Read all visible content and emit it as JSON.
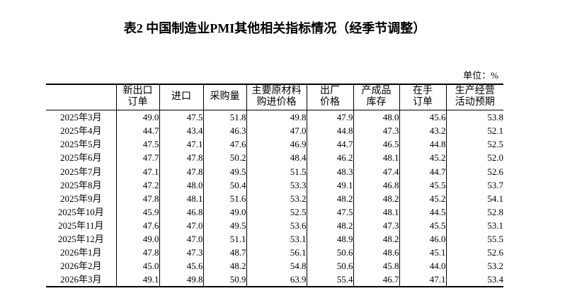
{
  "page": {
    "title": "表2 中国制造业PMI其他相关指标情况（经季节调整）",
    "unit_label": "单位：%"
  },
  "colors": {
    "text": "#000000",
    "border": "#000000",
    "background": "#ffffff"
  },
  "table": {
    "columns": [
      "",
      "新出口\n订单",
      "进口",
      "采购量",
      "主要原材料\n购进价格",
      "出厂\n价格",
      "产成品\n库存",
      "在手\n订单",
      "生产经营\n活动预期"
    ],
    "rows": [
      {
        "label": "2025年3月",
        "values": [
          "49.0",
          "47.5",
          "51.8",
          "49.8",
          "47.9",
          "48.0",
          "45.6",
          "53.8"
        ]
      },
      {
        "label": "2025年4月",
        "values": [
          "44.7",
          "43.4",
          "46.3",
          "47.0",
          "44.8",
          "47.3",
          "43.2",
          "52.1"
        ]
      },
      {
        "label": "2025年5月",
        "values": [
          "47.5",
          "47.1",
          "47.6",
          "46.9",
          "44.7",
          "46.5",
          "44.8",
          "52.5"
        ]
      },
      {
        "label": "2025年6月",
        "values": [
          "47.7",
          "47.8",
          "50.2",
          "48.4",
          "46.2",
          "48.1",
          "45.2",
          "52.0"
        ]
      },
      {
        "label": "2025年7月",
        "values": [
          "47.1",
          "47.8",
          "49.5",
          "51.5",
          "48.3",
          "47.4",
          "44.7",
          "52.6"
        ]
      },
      {
        "label": "2025年8月",
        "values": [
          "47.2",
          "48.0",
          "50.4",
          "53.3",
          "49.1",
          "46.8",
          "45.5",
          "53.7"
        ]
      },
      {
        "label": "2025年9月",
        "values": [
          "47.8",
          "48.1",
          "51.6",
          "53.2",
          "48.2",
          "48.2",
          "45.2",
          "54.1"
        ]
      },
      {
        "label": "2025年10月",
        "values": [
          "45.9",
          "46.8",
          "49.0",
          "52.5",
          "47.5",
          "48.1",
          "44.5",
          "52.8"
        ]
      },
      {
        "label": "2025年11月",
        "values": [
          "47.6",
          "47.0",
          "49.5",
          "53.6",
          "48.2",
          "47.3",
          "45.5",
          "53.1"
        ]
      },
      {
        "label": "2025年12月",
        "values": [
          "49.0",
          "47.0",
          "51.1",
          "53.1",
          "48.9",
          "48.2",
          "46.0",
          "55.5"
        ]
      },
      {
        "label": "2026年1月",
        "values": [
          "47.8",
          "47.3",
          "48.7",
          "56.1",
          "50.6",
          "48.6",
          "45.1",
          "52.6"
        ]
      },
      {
        "label": "2026年2月",
        "values": [
          "45.0",
          "45.6",
          "48.2",
          "54.8",
          "50.6",
          "45.8",
          "44.0",
          "53.2"
        ]
      },
      {
        "label": "2026年3月",
        "values": [
          "49.1",
          "49.8",
          "50.9",
          "63.9",
          "55.4",
          "46.7",
          "47.1",
          "53.4"
        ]
      }
    ]
  }
}
